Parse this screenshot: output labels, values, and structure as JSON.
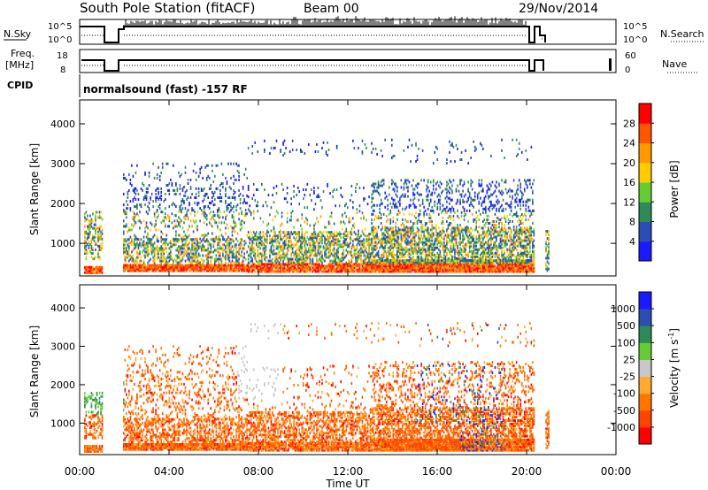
{
  "header": {
    "station": "South Pole Station (fitACF)",
    "beam": "Beam 00",
    "date": "29/Nov/2014"
  },
  "top_panels": {
    "nsky": {
      "label": "N.Sky",
      "tick_top": "10^5",
      "tick_bottom": "10^0"
    },
    "nsearch": {
      "label": "N.Search",
      "tick_top": "10^5",
      "tick_bottom": "10^0"
    },
    "freq": {
      "label_line1": "Freq.",
      "label_line2": "[MHz]",
      "tick_top": "18",
      "tick_bottom": "8"
    },
    "nave": {
      "label": "Nave",
      "tick_top": "60",
      "tick_bottom": "0"
    },
    "cpid": {
      "label": "CPID",
      "text": "normalsound (fast) -157 RF"
    }
  },
  "colors": {
    "power": [
      "#1a1aff",
      "#2b4fb0",
      "#2e8b57",
      "#66cc33",
      "#ffcc00",
      "#ff9900",
      "#ff5500",
      "#ff0000"
    ],
    "velocity": [
      "#ff0000",
      "#ff4400",
      "#ff7700",
      "#ffaa33",
      "#c8c8c8",
      "#66cc33",
      "#2e8b57",
      "#2b4fb0",
      "#1a1aff"
    ]
  },
  "chart_data": [
    {
      "type": "heatmap",
      "title": "Power",
      "ylabel": "Slant Range [km]",
      "xlabel": "",
      "x_ticks": [
        "00:00",
        "04:00",
        "08:00",
        "12:00",
        "16:00",
        "20:00",
        "00:00"
      ],
      "y_ticks": [
        "1000",
        "2000",
        "3000",
        "4000"
      ],
      "ylim": [
        180,
        4600
      ],
      "xlim_hours": [
        0,
        24
      ],
      "colorbar": {
        "label": "Power [dB]",
        "ticks": [
          "4",
          "8",
          "12",
          "16",
          "20",
          "24",
          "28"
        ],
        "range": [
          0,
          32
        ]
      }
    },
    {
      "type": "heatmap",
      "title": "Velocity",
      "ylabel": "Slant Range [km]",
      "xlabel": "Time UT",
      "x_ticks": [
        "00:00",
        "04:00",
        "08:00",
        "12:00",
        "16:00",
        "20:00",
        "00:00"
      ],
      "y_ticks": [
        "1000",
        "2000",
        "3000",
        "4000"
      ],
      "ylim": [
        180,
        4600
      ],
      "xlim_hours": [
        0,
        24
      ],
      "colorbar": {
        "label_main": "Velocity [m s",
        "label_sup": "-1",
        "label_end": "]",
        "ticks": [
          "-1000",
          "-500",
          "-100",
          "-25",
          "25",
          "100",
          "500",
          "1000"
        ]
      }
    }
  ]
}
